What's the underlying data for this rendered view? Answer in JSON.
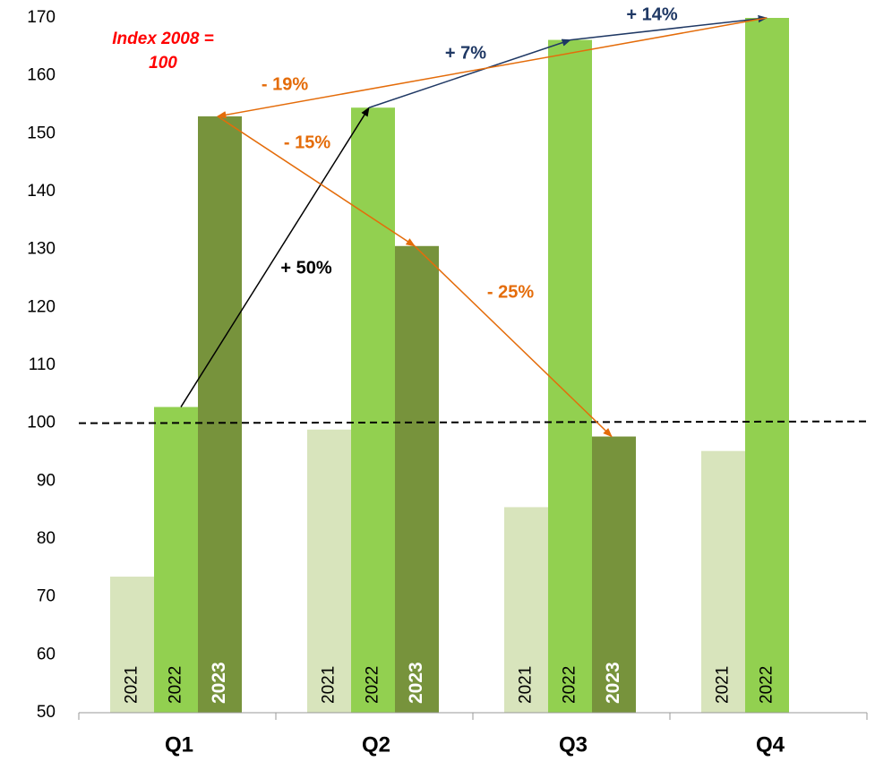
{
  "chart_data": {
    "type": "bar",
    "categories": [
      "Q1",
      "Q2",
      "Q3",
      "Q4"
    ],
    "series": [
      {
        "name": "2021",
        "color": "#d8e4bc",
        "values": [
          73.5,
          98.9,
          85.5,
          95.2
        ]
      },
      {
        "name": "2022",
        "color": "#92d050",
        "values": [
          102.8,
          154.5,
          166.2,
          170
        ]
      },
      {
        "name": "2023",
        "color": "#77933c",
        "values": [
          153,
          130.6,
          97.7,
          null
        ]
      }
    ],
    "ylim": [
      50,
      170
    ],
    "yticks": [
      50,
      60,
      70,
      80,
      90,
      100,
      110,
      120,
      130,
      140,
      150,
      160,
      170
    ],
    "reference_line": 100,
    "note": [
      "Index 2008 =",
      "100"
    ],
    "annotations": [
      {
        "text": "+ 50%",
        "color": "#000000"
      },
      {
        "text": "+ 7%",
        "color": "#1f3864"
      },
      {
        "text": "+ 14%",
        "color": "#1f3864"
      },
      {
        "text": "- 19%",
        "color": "#e46c0a"
      },
      {
        "text": "- 15%",
        "color": "#e46c0a"
      },
      {
        "text": "- 25%",
        "color": "#e46c0a"
      }
    ]
  }
}
